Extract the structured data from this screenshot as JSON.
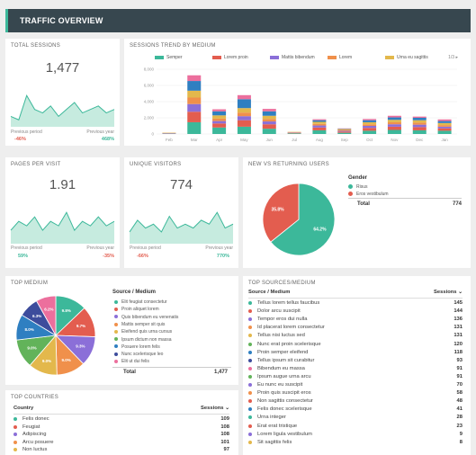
{
  "header": {
    "title": "TRAFFIC OVERVIEW"
  },
  "total_sessions": {
    "title": "TOTAL SESSIONS",
    "value": "1,477",
    "prev_label": "Previous period",
    "year_label": "Previous year",
    "prev_change": "-46%",
    "year_change": "468%"
  },
  "trend": {
    "title": "SESSIONS TREND BY MEDIUM",
    "pager": "1/3"
  },
  "pages_per_visit": {
    "title": "PAGES PER VISIT",
    "value": "1.91",
    "prev_label": "Previous period",
    "year_label": "Previous year",
    "prev_change": "59%",
    "year_change": "-35%"
  },
  "unique_visitors": {
    "title": "UNIQUE VISITORS",
    "value": "774",
    "prev_label": "Previous period",
    "year_label": "Previous year",
    "prev_change": "-66%",
    "year_change": "770%"
  },
  "new_returning": {
    "title": "NEW VS RETURNING USERS",
    "legend_title": "Gender",
    "legend": [
      "Risus",
      "Eros vestibulum"
    ],
    "total_label": "Total",
    "total_value": "774",
    "slice_labels": [
      "64.2%",
      "35.8%"
    ]
  },
  "top_medium": {
    "title": "TOP MEDIUM",
    "header": "Source / Medium",
    "items": [
      "Elit feugiat consectetur",
      "Proin aliquet lorem",
      "Quis bibendum eu venenatis",
      "Mattis semper sit quis",
      "Eleifend quis urna cursus",
      "Ipsum dictum non massa",
      "Posuere lorem felis",
      "Nunc scelerisque leo",
      "Elit ut dui felis"
    ],
    "total_label": "Total",
    "total_value": "1,477",
    "slice_labels": [
      "9.8%",
      "9.7%",
      "9.3%",
      "9.0%",
      "9.0%",
      "9.0%",
      "8.0%",
      "6.3%",
      "6.2%"
    ]
  },
  "top_countries": {
    "title": "TOP COUNTRIES",
    "col1": "Country",
    "col2": "Sessions",
    "rows": [
      {
        "name": "Felis donec",
        "value": "109"
      },
      {
        "name": "Feugiat",
        "value": "108"
      },
      {
        "name": "Adipiscing",
        "value": "108"
      },
      {
        "name": "Arcu posuere",
        "value": "101"
      },
      {
        "name": "Non luctus",
        "value": "97"
      }
    ]
  },
  "top_sources": {
    "title": "TOP SOURCES/MEDIUM",
    "col1": "Source / Medium",
    "col2": "Sessions",
    "rows": [
      {
        "name": "Tellus lorem tellus faucibus",
        "value": "145"
      },
      {
        "name": "Dolor arcu suscipit",
        "value": "144"
      },
      {
        "name": "Tempor eros dui nulla",
        "value": "136"
      },
      {
        "name": "Id placerat lorem consectetur",
        "value": "131"
      },
      {
        "name": "Tellus nisi luctus sed",
        "value": "131"
      },
      {
        "name": "Nunc erat proin scelerisque",
        "value": "120"
      },
      {
        "name": "Proin semper eleifend",
        "value": "118"
      },
      {
        "name": "Tellus ipsum sit curabitur",
        "value": "93"
      },
      {
        "name": "Bibendum eu massa",
        "value": "91"
      },
      {
        "name": "Ipsum augue urna arcu",
        "value": "91"
      },
      {
        "name": "Eu nunc eu suscipit",
        "value": "70"
      },
      {
        "name": "Proin quis suscipit eros",
        "value": "58"
      },
      {
        "name": "Non sagittis consectetur",
        "value": "48"
      },
      {
        "name": "Felis donec scelerisque",
        "value": "41"
      },
      {
        "name": "Urna integer",
        "value": "28"
      },
      {
        "name": "Erat erat tristique",
        "value": "23"
      },
      {
        "name": "Lorem ligula vestibulum",
        "value": "9"
      },
      {
        "name": "Sit sagittis felis",
        "value": "8"
      }
    ]
  },
  "colors": {
    "teal": "#3cb89a",
    "red": "#e35d4f",
    "purple": "#8b6fd8",
    "orange": "#f0904b",
    "yellow": "#e3b84c",
    "blue": "#2f7fc1",
    "pink": "#ec6f9d",
    "green": "#62b35a",
    "navy": "#3d4c9c"
  },
  "chart_data": [
    {
      "type": "bar",
      "title": "SESSIONS TREND BY MEDIUM",
      "categories": [
        "Feb",
        "Mar",
        "Apr",
        "May",
        "Jun",
        "Jul",
        "Aug",
        "Sep",
        "Oct",
        "Nov",
        "Dec",
        "Jan"
      ],
      "ylim": [
        0,
        8000
      ],
      "yticks": [
        "0",
        "2,000",
        "4,000",
        "6,000",
        "8,000"
      ],
      "series": [
        {
          "name": "Semper",
          "values": [
            40,
            1450,
            800,
            900,
            650,
            80,
            450,
            150,
            400,
            500,
            450,
            400
          ]
        },
        {
          "name": "Lorem proin",
          "values": [
            40,
            1300,
            500,
            800,
            550,
            60,
            350,
            150,
            350,
            400,
            400,
            300
          ]
        },
        {
          "name": "Mattis bibendum",
          "values": [
            30,
            950,
            300,
            500,
            350,
            40,
            250,
            100,
            250,
            300,
            300,
            200
          ]
        },
        {
          "name": "Lorem",
          "values": [
            30,
            800,
            300,
            450,
            300,
            40,
            200,
            100,
            200,
            250,
            250,
            200
          ]
        },
        {
          "name": "Urna eu sagittis",
          "values": [
            30,
            850,
            400,
            550,
            400,
            40,
            250,
            100,
            250,
            300,
            300,
            250
          ]
        },
        {
          "name": "",
          "values": [
            0,
            1200,
            500,
            1100,
            550,
            0,
            200,
            50,
            250,
            300,
            300,
            250
          ]
        },
        {
          "name": "",
          "values": [
            0,
            700,
            250,
            500,
            300,
            0,
            120,
            40,
            150,
            200,
            150,
            200
          ]
        }
      ]
    },
    {
      "type": "area",
      "title": "TOTAL SESSIONS",
      "values": [
        3,
        2,
        9,
        5,
        4,
        6,
        3,
        5,
        7,
        4,
        5,
        6,
        4,
        5
      ]
    },
    {
      "type": "area",
      "title": "PAGES PER VISIT",
      "values": [
        3,
        5,
        4,
        6,
        3,
        5,
        4,
        7,
        3,
        5,
        4,
        6,
        4,
        5
      ]
    },
    {
      "type": "area",
      "title": "UNIQUE VISITORS",
      "values": [
        3,
        6,
        4,
        5,
        3,
        7,
        4,
        5,
        4,
        6,
        5,
        8,
        4,
        5
      ]
    },
    {
      "type": "pie",
      "title": "NEW VS RETURNING USERS",
      "categories": [
        "Risus",
        "Eros vestibulum"
      ],
      "values": [
        64.2,
        35.8
      ]
    },
    {
      "type": "pie",
      "title": "TOP MEDIUM",
      "categories": [
        "Elit feugiat consectetur",
        "Proin aliquet lorem",
        "Quis bibendum eu venenatis",
        "Mattis semper sit quis",
        "Eleifend quis urna cursus",
        "Ipsum dictum non massa",
        "Posuere lorem felis",
        "Nunc scelerisque leo",
        "Elit ut dui felis"
      ],
      "values": [
        9.8,
        9.7,
        9.3,
        9.0,
        9.0,
        9.0,
        8.0,
        6.3,
        6.2
      ]
    }
  ]
}
